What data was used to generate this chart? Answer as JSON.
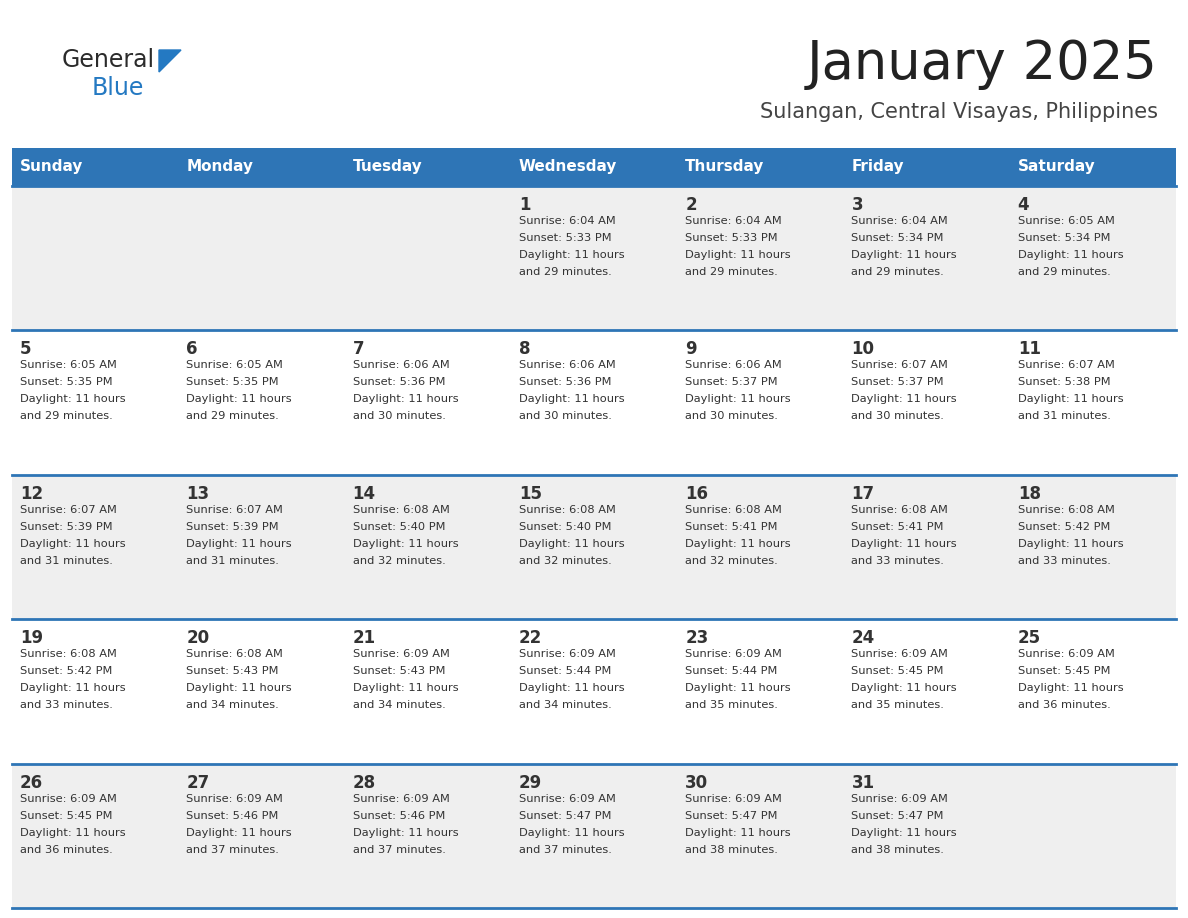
{
  "title": "January 2025",
  "subtitle": "Sulangan, Central Visayas, Philippines",
  "days_of_week": [
    "Sunday",
    "Monday",
    "Tuesday",
    "Wednesday",
    "Thursday",
    "Friday",
    "Saturday"
  ],
  "header_bg": "#2E75B6",
  "header_text_color": "#FFFFFF",
  "row_bg_odd": "#EFEFEF",
  "row_bg_even": "#FFFFFF",
  "cell_border_color": "#2E75B6",
  "day_number_color": "#333333",
  "day_text_color": "#333333",
  "logo_general_color": "#2B2B2B",
  "logo_blue_color": "#2479C2",
  "calendar": [
    [
      {
        "day": null,
        "sunrise": null,
        "sunset": null,
        "daylight": null
      },
      {
        "day": null,
        "sunrise": null,
        "sunset": null,
        "daylight": null
      },
      {
        "day": null,
        "sunrise": null,
        "sunset": null,
        "daylight": null
      },
      {
        "day": 1,
        "sunrise": "6:04 AM",
        "sunset": "5:33 PM",
        "daylight": "11 hours and 29 minutes."
      },
      {
        "day": 2,
        "sunrise": "6:04 AM",
        "sunset": "5:33 PM",
        "daylight": "11 hours and 29 minutes."
      },
      {
        "day": 3,
        "sunrise": "6:04 AM",
        "sunset": "5:34 PM",
        "daylight": "11 hours and 29 minutes."
      },
      {
        "day": 4,
        "sunrise": "6:05 AM",
        "sunset": "5:34 PM",
        "daylight": "11 hours and 29 minutes."
      }
    ],
    [
      {
        "day": 5,
        "sunrise": "6:05 AM",
        "sunset": "5:35 PM",
        "daylight": "11 hours and 29 minutes."
      },
      {
        "day": 6,
        "sunrise": "6:05 AM",
        "sunset": "5:35 PM",
        "daylight": "11 hours and 29 minutes."
      },
      {
        "day": 7,
        "sunrise": "6:06 AM",
        "sunset": "5:36 PM",
        "daylight": "11 hours and 30 minutes."
      },
      {
        "day": 8,
        "sunrise": "6:06 AM",
        "sunset": "5:36 PM",
        "daylight": "11 hours and 30 minutes."
      },
      {
        "day": 9,
        "sunrise": "6:06 AM",
        "sunset": "5:37 PM",
        "daylight": "11 hours and 30 minutes."
      },
      {
        "day": 10,
        "sunrise": "6:07 AM",
        "sunset": "5:37 PM",
        "daylight": "11 hours and 30 minutes."
      },
      {
        "day": 11,
        "sunrise": "6:07 AM",
        "sunset": "5:38 PM",
        "daylight": "11 hours and 31 minutes."
      }
    ],
    [
      {
        "day": 12,
        "sunrise": "6:07 AM",
        "sunset": "5:39 PM",
        "daylight": "11 hours and 31 minutes."
      },
      {
        "day": 13,
        "sunrise": "6:07 AM",
        "sunset": "5:39 PM",
        "daylight": "11 hours and 31 minutes."
      },
      {
        "day": 14,
        "sunrise": "6:08 AM",
        "sunset": "5:40 PM",
        "daylight": "11 hours and 32 minutes."
      },
      {
        "day": 15,
        "sunrise": "6:08 AM",
        "sunset": "5:40 PM",
        "daylight": "11 hours and 32 minutes."
      },
      {
        "day": 16,
        "sunrise": "6:08 AM",
        "sunset": "5:41 PM",
        "daylight": "11 hours and 32 minutes."
      },
      {
        "day": 17,
        "sunrise": "6:08 AM",
        "sunset": "5:41 PM",
        "daylight": "11 hours and 33 minutes."
      },
      {
        "day": 18,
        "sunrise": "6:08 AM",
        "sunset": "5:42 PM",
        "daylight": "11 hours and 33 minutes."
      }
    ],
    [
      {
        "day": 19,
        "sunrise": "6:08 AM",
        "sunset": "5:42 PM",
        "daylight": "11 hours and 33 minutes."
      },
      {
        "day": 20,
        "sunrise": "6:08 AM",
        "sunset": "5:43 PM",
        "daylight": "11 hours and 34 minutes."
      },
      {
        "day": 21,
        "sunrise": "6:09 AM",
        "sunset": "5:43 PM",
        "daylight": "11 hours and 34 minutes."
      },
      {
        "day": 22,
        "sunrise": "6:09 AM",
        "sunset": "5:44 PM",
        "daylight": "11 hours and 34 minutes."
      },
      {
        "day": 23,
        "sunrise": "6:09 AM",
        "sunset": "5:44 PM",
        "daylight": "11 hours and 35 minutes."
      },
      {
        "day": 24,
        "sunrise": "6:09 AM",
        "sunset": "5:45 PM",
        "daylight": "11 hours and 35 minutes."
      },
      {
        "day": 25,
        "sunrise": "6:09 AM",
        "sunset": "5:45 PM",
        "daylight": "11 hours and 36 minutes."
      }
    ],
    [
      {
        "day": 26,
        "sunrise": "6:09 AM",
        "sunset": "5:45 PM",
        "daylight": "11 hours and 36 minutes."
      },
      {
        "day": 27,
        "sunrise": "6:09 AM",
        "sunset": "5:46 PM",
        "daylight": "11 hours and 37 minutes."
      },
      {
        "day": 28,
        "sunrise": "6:09 AM",
        "sunset": "5:46 PM",
        "daylight": "11 hours and 37 minutes."
      },
      {
        "day": 29,
        "sunrise": "6:09 AM",
        "sunset": "5:47 PM",
        "daylight": "11 hours and 37 minutes."
      },
      {
        "day": 30,
        "sunrise": "6:09 AM",
        "sunset": "5:47 PM",
        "daylight": "11 hours and 38 minutes."
      },
      {
        "day": 31,
        "sunrise": "6:09 AM",
        "sunset": "5:47 PM",
        "daylight": "11 hours and 38 minutes."
      },
      {
        "day": null,
        "sunrise": null,
        "sunset": null,
        "daylight": null
      }
    ]
  ]
}
